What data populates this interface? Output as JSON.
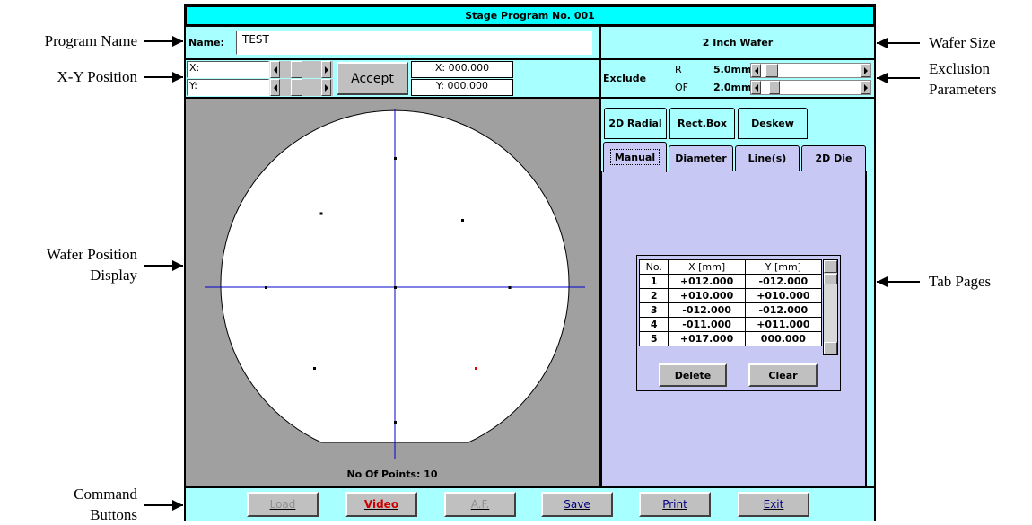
{
  "annotations": {
    "left": [
      {
        "lines": [
          "Program Name"
        ]
      },
      {
        "lines": [
          "X-Y Position"
        ]
      },
      {
        "lines": [
          "Wafer Position",
          "Display"
        ]
      },
      {
        "lines": [
          "Command",
          "Buttons"
        ]
      }
    ],
    "right": [
      {
        "lines": [
          "Wafer Size"
        ]
      },
      {
        "lines": [
          "Exclusion",
          "Parameters"
        ]
      },
      {
        "lines": [
          "Tab Pages"
        ]
      }
    ]
  },
  "window": {
    "title": "Stage Program No. 001",
    "name_label": "Name:",
    "name_value": "TEST",
    "wafer_size": "2 Inch Wafer",
    "position": {
      "x_label": "X:",
      "y_label": "Y:",
      "accept": "Accept",
      "x_readout": "X: 000.000",
      "y_readout": "Y: 000.000"
    },
    "exclude": {
      "label": "Exclude",
      "r_label": "R",
      "r_value": "5.0mm",
      "of_label": "OF",
      "of_value": "2.0mm"
    },
    "display": {
      "points_label": "No Of Points: 10"
    },
    "tabs_row1": [
      "2D Radial",
      "Rect.Box",
      "Deskew"
    ],
    "tabs_row2": [
      "Manual",
      "Diameter",
      "Line(s)",
      "2D Die"
    ],
    "table": {
      "headers": [
        "No.",
        "X [mm]",
        "Y [mm]"
      ],
      "rows": [
        [
          "1",
          "+012.000",
          "-012.000"
        ],
        [
          "2",
          "+010.000",
          "+010.000"
        ],
        [
          "3",
          "-012.000",
          "-012.000"
        ],
        [
          "4",
          "-011.000",
          "+011.000"
        ],
        [
          "5",
          "+017.000",
          "000.000"
        ]
      ],
      "buttons": [
        "Delete",
        "Clear"
      ]
    },
    "commands": [
      {
        "label": "Load",
        "enabled": false
      },
      {
        "label": "Video",
        "enabled": true,
        "color": "#cc0000"
      },
      {
        "label": "A.F.",
        "enabled": false
      },
      {
        "label": "Save",
        "enabled": true,
        "color": "#000080"
      },
      {
        "label": "Print",
        "enabled": true,
        "color": "#000080"
      },
      {
        "label": "Exit",
        "enabled": true,
        "color": "#000080"
      }
    ]
  }
}
